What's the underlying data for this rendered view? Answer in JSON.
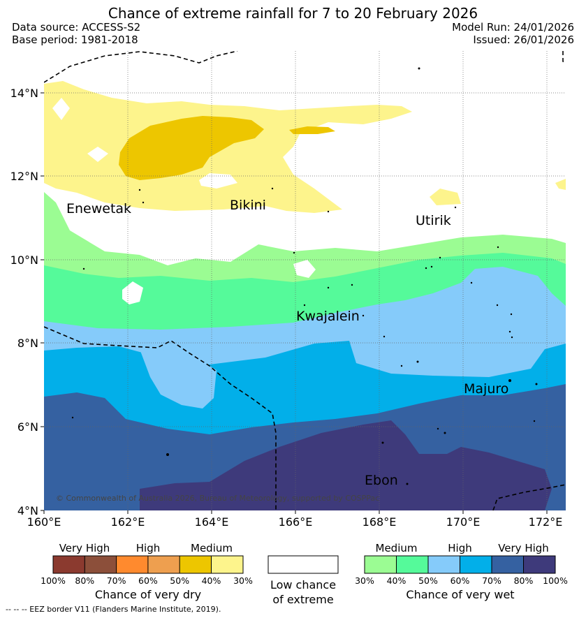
{
  "title": "Chance of extreme rainfall for 7 to 20 February 2026",
  "header": {
    "data_source": "Data source: ACCESS-S2",
    "base_period": "Base period: 1981-2018",
    "model_run": "Model Run: 24/01/2026",
    "issued": "Issued: 26/01/2026"
  },
  "map": {
    "lat_labels": [
      "14°N",
      "12°N",
      "10°N",
      "8°N",
      "6°N",
      "4°N"
    ],
    "lon_labels": [
      "160°E",
      "162°E",
      "164°E",
      "166°E",
      "168°E",
      "170°E",
      "172°E"
    ],
    "places": [
      "Enewetak",
      "Bikini",
      "Utirik",
      "Kwajalein",
      "Majuro",
      "Ebon"
    ],
    "copyright": "© Commonwealth of Australia 2026, Bureau of Meteorology, supported by COSPPac"
  },
  "legend": {
    "dry": {
      "headings": [
        "Very High",
        "High",
        "Medium"
      ],
      "ticks": [
        "100%",
        "80%",
        "70%",
        "60%",
        "50%",
        "40%",
        "30%"
      ],
      "title": "Chance of very dry",
      "colors": [
        "#8B3A2F",
        "#8C4F3A",
        "#FF8A2E",
        "#EE9F4F",
        "#EDC600",
        "#FDF48C"
      ]
    },
    "low": {
      "title_line1": "Low chance",
      "title_line2": "of extreme",
      "color": "#ffffff"
    },
    "wet": {
      "headings": [
        "Medium",
        "High",
        "Very High"
      ],
      "ticks": [
        "30%",
        "40%",
        "50%",
        "60%",
        "70%",
        "80%",
        "100%"
      ],
      "title": "Chance of very wet",
      "colors": [
        "#9BFC93",
        "#55FA9A",
        "#85CBFA",
        "#02AFE9",
        "#3561A1",
        "#3E3A7B"
      ]
    }
  },
  "footnote": "-- -- -- EEZ border V11 (Flanders Marine Institute, 2019)."
}
